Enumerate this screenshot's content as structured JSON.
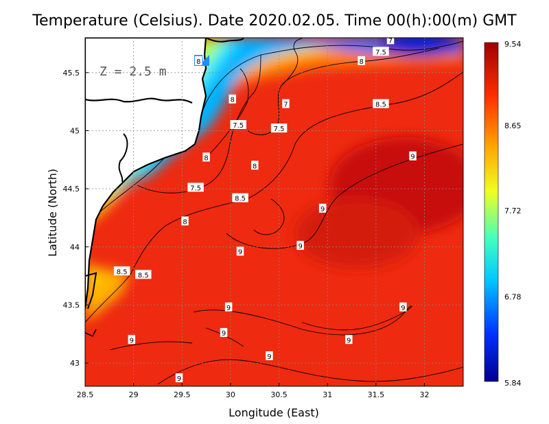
{
  "title": "Temperature (Celsius). Date 2020.02.05. Time 00(h):00(m) GMT",
  "depth_label": "Z = 2.5 m",
  "axes": {
    "xlabel": "Longitude (East)",
    "ylabel": "Latitude (North)",
    "x_ticks": [
      "28.5",
      "29",
      "29.5",
      "30",
      "30.5",
      "31",
      "31.5",
      "32"
    ],
    "y_ticks": [
      "43",
      "43.5",
      "44",
      "44.5",
      "45",
      "45.5"
    ]
  },
  "map_data": {
    "xlim": [
      28.5,
      32.4
    ],
    "ylim": [
      42.8,
      45.8
    ],
    "grid": "on (dotted)"
  },
  "colorbar": {
    "min": 5.84,
    "max": 9.54,
    "labels": [
      "9.54",
      "8.65",
      "7.72",
      "6.78",
      "5.84"
    ],
    "colors": [
      "#00008f",
      "#0030ff",
      "#00c8ff",
      "#40ffc0",
      "#f0ff20",
      "#ffa000",
      "#ff3000",
      "#a00000"
    ]
  },
  "contour_labels": [
    {
      "text": "8",
      "lon": 29.67,
      "lat": 45.6
    },
    {
      "text": "8",
      "lon": 30.02,
      "lat": 45.27
    },
    {
      "text": "7.5",
      "lon": 30.08,
      "lat": 45.05
    },
    {
      "text": "7",
      "lon": 30.57,
      "lat": 45.23
    },
    {
      "text": "7.5",
      "lon": 30.5,
      "lat": 45.02
    },
    {
      "text": "8",
      "lon": 30.25,
      "lat": 44.7
    },
    {
      "text": "8",
      "lon": 29.75,
      "lat": 44.77
    },
    {
      "text": "7.5",
      "lon": 29.64,
      "lat": 44.51
    },
    {
      "text": "8.5",
      "lon": 30.1,
      "lat": 44.42
    },
    {
      "text": "8",
      "lon": 29.53,
      "lat": 44.22
    },
    {
      "text": "9",
      "lon": 30.95,
      "lat": 44.33
    },
    {
      "text": "9",
      "lon": 30.1,
      "lat": 43.96
    },
    {
      "text": "9",
      "lon": 30.72,
      "lat": 44.01
    },
    {
      "text": "8.5",
      "lon": 28.88,
      "lat": 43.79
    },
    {
      "text": "8.5",
      "lon": 29.1,
      "lat": 43.76
    },
    {
      "text": "9",
      "lon": 29.98,
      "lat": 43.48
    },
    {
      "text": "9",
      "lon": 29.93,
      "lat": 43.26
    },
    {
      "text": "9",
      "lon": 28.98,
      "lat": 43.2
    },
    {
      "text": "9",
      "lon": 31.22,
      "lat": 43.2
    },
    {
      "text": "9",
      "lon": 31.78,
      "lat": 43.48
    },
    {
      "text": "9",
      "lon": 30.4,
      "lat": 43.06
    },
    {
      "text": "9",
      "lon": 29.47,
      "lat": 42.87
    },
    {
      "text": "8",
      "lon": 31.35,
      "lat": 45.6
    },
    {
      "text": "8.5",
      "lon": 31.55,
      "lat": 45.23
    },
    {
      "text": "9",
      "lon": 31.88,
      "lat": 44.78
    },
    {
      "text": "7.5",
      "lon": 31.55,
      "lat": 45.68
    },
    {
      "text": "7",
      "lon": 31.65,
      "lat": 45.78
    }
  ]
}
